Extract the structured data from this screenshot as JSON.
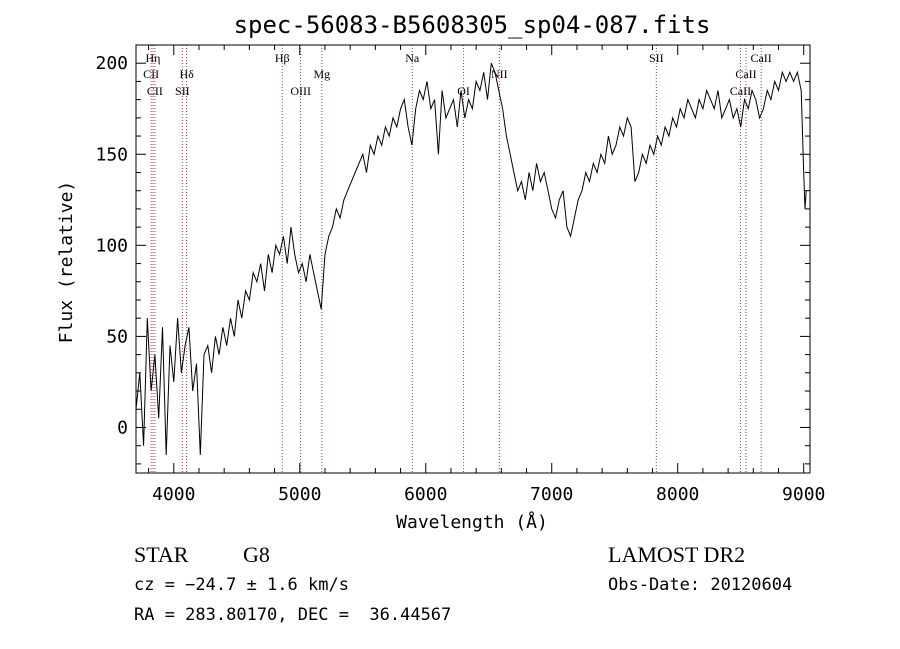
{
  "chart_data": {
    "type": "line",
    "title": "spec-56083-B5608305_sp04-087.fits",
    "xlabel": "Wavelength (Å)",
    "ylabel": "Flux (relative)",
    "xlim": [
      3700,
      9050
    ],
    "ylim": [
      -25,
      210
    ],
    "x_ticks": [
      4000,
      5000,
      6000,
      7000,
      8000,
      9000
    ],
    "y_ticks": [
      0,
      50,
      100,
      150,
      200
    ],
    "grid": false,
    "legend": "none",
    "line_color": "#000000",
    "marker_color": "#a04040",
    "spectrum": {
      "x": [
        3700,
        3730,
        3760,
        3790,
        3820,
        3850,
        3880,
        3910,
        3940,
        3970,
        4000,
        4030,
        4060,
        4090,
        4120,
        4150,
        4180,
        4210,
        4240,
        4270,
        4300,
        4330,
        4360,
        4390,
        4420,
        4450,
        4480,
        4510,
        4540,
        4570,
        4600,
        4630,
        4660,
        4690,
        4720,
        4750,
        4780,
        4810,
        4840,
        4870,
        4900,
        4930,
        4960,
        4990,
        5020,
        5050,
        5080,
        5110,
        5140,
        5170,
        5200,
        5230,
        5260,
        5290,
        5320,
        5350,
        5380,
        5410,
        5440,
        5470,
        5500,
        5530,
        5560,
        5590,
        5620,
        5650,
        5680,
        5710,
        5740,
        5770,
        5800,
        5830,
        5860,
        5890,
        5920,
        5950,
        5980,
        6010,
        6040,
        6070,
        6100,
        6130,
        6160,
        6190,
        6220,
        6250,
        6280,
        6310,
        6340,
        6370,
        6400,
        6430,
        6460,
        6490,
        6520,
        6550,
        6580,
        6610,
        6640,
        6670,
        6700,
        6730,
        6760,
        6790,
        6820,
        6850,
        6880,
        6910,
        6940,
        6970,
        7000,
        7030,
        7060,
        7090,
        7120,
        7150,
        7180,
        7210,
        7240,
        7270,
        7300,
        7330,
        7360,
        7390,
        7420,
        7450,
        7480,
        7510,
        7540,
        7570,
        7600,
        7630,
        7660,
        7690,
        7720,
        7750,
        7780,
        7810,
        7840,
        7870,
        7900,
        7930,
        7960,
        7990,
        8020,
        8050,
        8080,
        8110,
        8140,
        8170,
        8200,
        8230,
        8260,
        8290,
        8320,
        8350,
        8380,
        8410,
        8440,
        8470,
        8500,
        8530,
        8560,
        8590,
        8620,
        8650,
        8680,
        8710,
        8740,
        8770,
        8800,
        8830,
        8860,
        8890,
        8920,
        8950,
        8980,
        9000,
        9010,
        9020
      ],
      "y": [
        10,
        30,
        -10,
        60,
        20,
        40,
        5,
        55,
        -15,
        45,
        25,
        60,
        30,
        45,
        55,
        20,
        35,
        -15,
        40,
        45,
        30,
        50,
        40,
        55,
        45,
        60,
        50,
        70,
        60,
        75,
        70,
        85,
        80,
        90,
        75,
        95,
        85,
        100,
        95,
        105,
        90,
        110,
        95,
        85,
        90,
        80,
        95,
        85,
        75,
        65,
        95,
        105,
        110,
        120,
        115,
        125,
        130,
        135,
        140,
        145,
        150,
        140,
        155,
        150,
        160,
        155,
        165,
        160,
        170,
        165,
        175,
        180,
        165,
        155,
        175,
        185,
        180,
        190,
        175,
        180,
        150,
        185,
        170,
        175,
        180,
        165,
        185,
        170,
        180,
        175,
        190,
        185,
        195,
        180,
        200,
        195,
        185,
        175,
        160,
        150,
        140,
        130,
        135,
        125,
        140,
        130,
        145,
        135,
        140,
        130,
        120,
        115,
        125,
        130,
        110,
        105,
        115,
        125,
        130,
        140,
        135,
        145,
        140,
        150,
        145,
        160,
        150,
        155,
        165,
        160,
        170,
        165,
        135,
        140,
        150,
        145,
        155,
        150,
        160,
        155,
        165,
        160,
        170,
        165,
        175,
        170,
        180,
        175,
        170,
        180,
        175,
        185,
        180,
        175,
        185,
        170,
        175,
        180,
        170,
        175,
        165,
        180,
        175,
        185,
        180,
        170,
        175,
        185,
        180,
        190,
        185,
        195,
        190,
        195,
        190,
        195,
        185,
        140,
        120,
        130
      ]
    },
    "line_markers": [
      {
        "label": "CII",
        "x": 3820,
        "row": "second"
      },
      {
        "label": "Hη",
        "x": 3835,
        "row": "top"
      },
      {
        "label": "CII",
        "x": 3850,
        "row": "third"
      },
      {
        "label": "SII",
        "x": 4068,
        "row": "third"
      },
      {
        "label": "Hδ",
        "x": 4102,
        "row": "second"
      },
      {
        "label": "Hβ",
        "x": 4861,
        "row": "top"
      },
      {
        "label": "OIII",
        "x": 5007,
        "row": "third"
      },
      {
        "label": "Mg",
        "x": 5175,
        "row": "second"
      },
      {
        "label": "Na",
        "x": 5893,
        "row": "top"
      },
      {
        "label": "OI",
        "x": 6300,
        "row": "third"
      },
      {
        "label": "NII",
        "x": 6584,
        "row": "second"
      },
      {
        "label": "SII",
        "x": 7830,
        "row": "top"
      },
      {
        "label": "CaII",
        "x": 8498,
        "row": "third"
      },
      {
        "label": "CaII",
        "x": 8542,
        "row": "second"
      },
      {
        "label": "CaII",
        "x": 8662,
        "row": "top"
      }
    ]
  },
  "info": {
    "class_label": "STAR",
    "subclass_label": "G8",
    "survey_label": "LAMOST DR2",
    "cz_text": "cz = −24.7 ± 1.6 km/s",
    "obs_date_text": "Obs-Date: 20120604",
    "coords_text": "RA = 283.80170, DEC =  36.44567"
  }
}
